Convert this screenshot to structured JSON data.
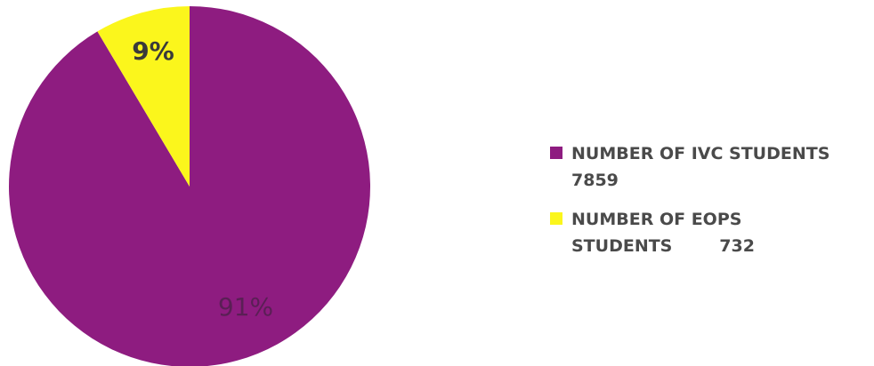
{
  "chart_data": {
    "type": "pie",
    "categories": [
      "NUMBER OF IVC STUDENTS 7859",
      "NUMBER OF EOPS STUDENTS 732"
    ],
    "values": [
      7859,
      732
    ],
    "percent_labels": [
      "91%",
      "9%"
    ],
    "colors": [
      "#8e1c80",
      "#fbf61c"
    ],
    "legend_position": "right",
    "legend": [
      {
        "lines": [
          "NUMBER OF IVC STUDENTS",
          "7859"
        ],
        "color": "#8e1c80"
      },
      {
        "lines": [
          "NUMBER OF EOPS",
          "STUDENTS        732"
        ],
        "color": "#fbf61c"
      }
    ]
  }
}
